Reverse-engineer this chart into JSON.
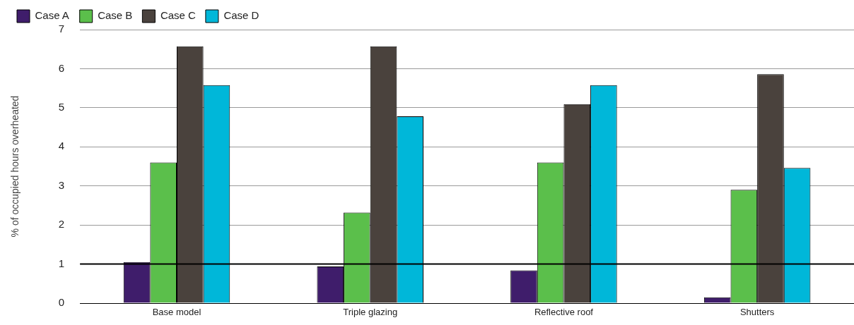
{
  "chart_data": {
    "type": "bar",
    "ylabel": "% of occupied hours overheated",
    "categories": [
      "Base model",
      "Triple glazing",
      "Reflective roof",
      "Shutters"
    ],
    "series": [
      {
        "name": "Case A",
        "color": "#3f1d6b",
        "values": [
          1.05,
          0.94,
          0.84,
          0.15
        ]
      },
      {
        "name": "Case B",
        "color": "#5bbf4b",
        "values": [
          3.6,
          2.32,
          3.6,
          2.9
        ]
      },
      {
        "name": "Case C",
        "color": "#4a423d",
        "values": [
          6.57,
          6.57,
          5.09,
          5.86
        ]
      },
      {
        "name": "Case D",
        "color": "#00b7d9",
        "values": [
          5.58,
          4.78,
          5.58,
          3.46
        ]
      }
    ],
    "ylim": [
      0,
      7
    ],
    "yticks": [
      0,
      1,
      2,
      3,
      4,
      5,
      6,
      7
    ],
    "grid": "y",
    "legend": "top left",
    "ref_lines": [
      {
        "axis": "y",
        "value": 1,
        "color": "#000000"
      }
    ]
  }
}
